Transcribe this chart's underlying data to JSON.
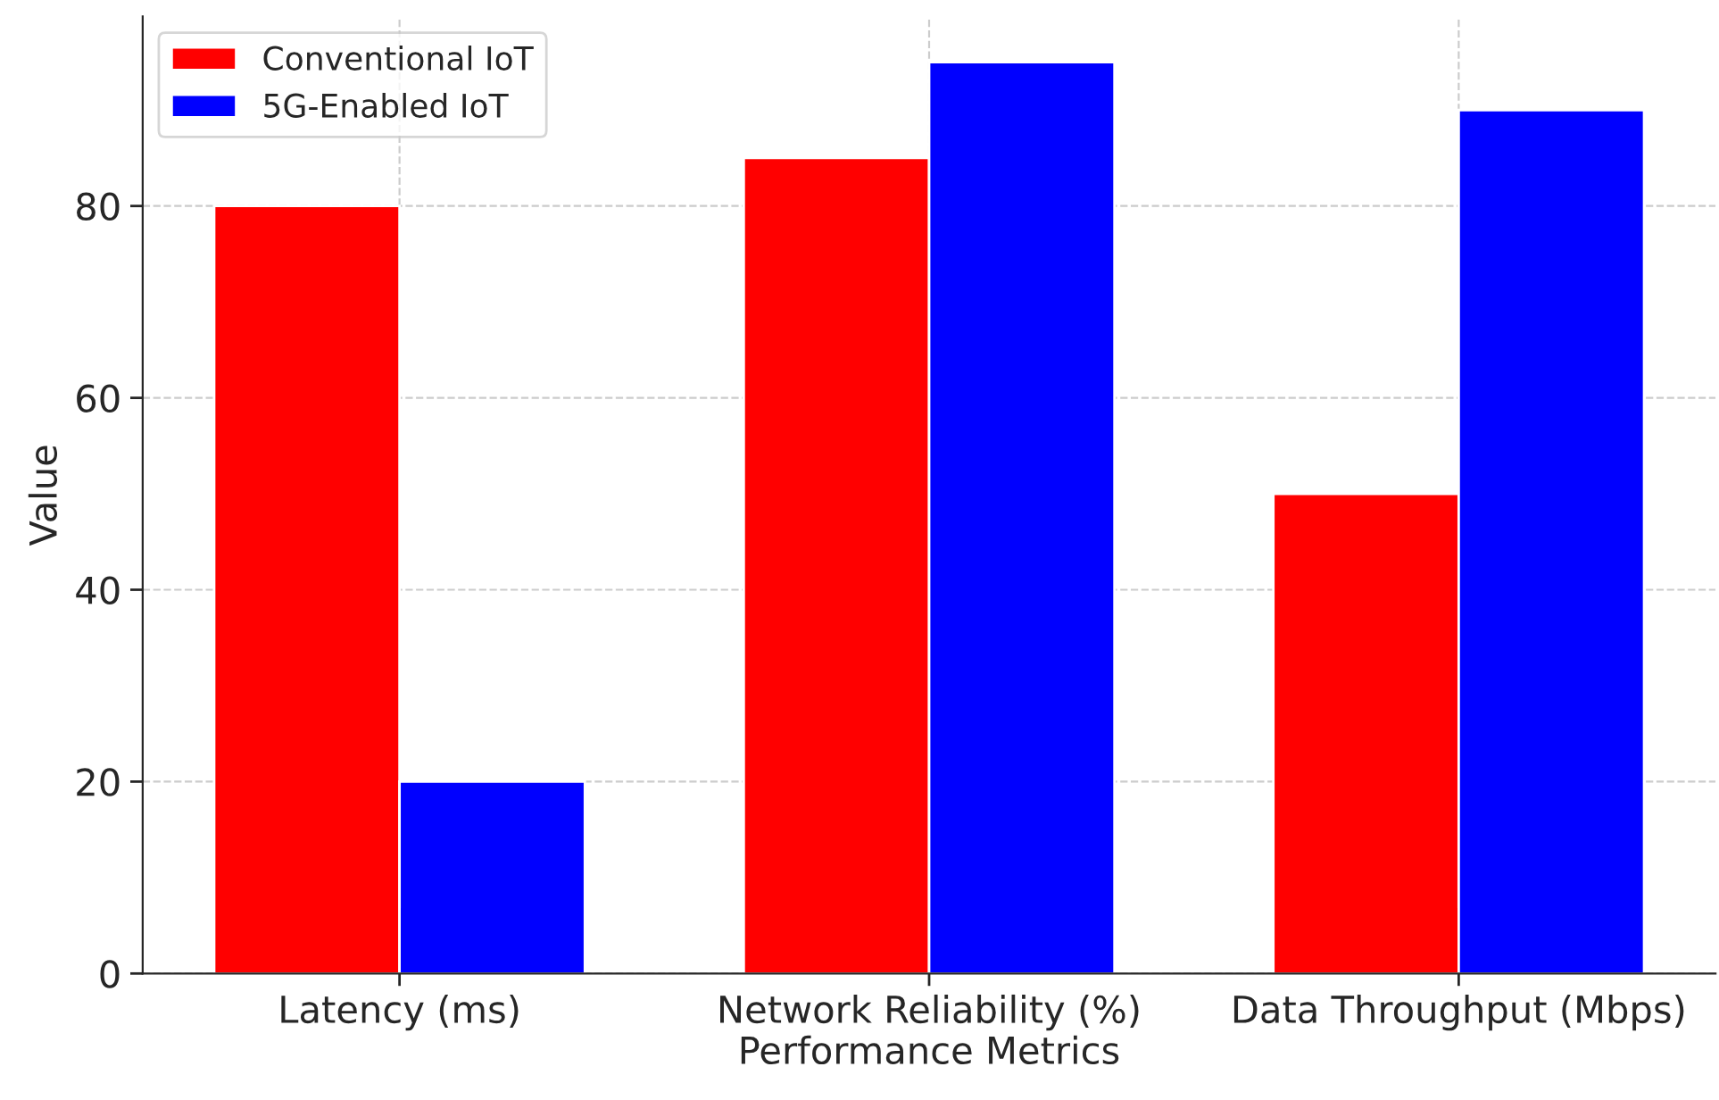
{
  "chart_data": {
    "type": "bar",
    "xlabel": "Performance Metrics",
    "ylabel": "Value",
    "categories": [
      "Latency (ms)",
      "Network Reliability (%)",
      "Data Throughput (Mbps)"
    ],
    "series": [
      {
        "name": "Conventional IoT",
        "color": "#ff0000",
        "values": [
          80,
          85,
          50
        ]
      },
      {
        "name": "5G-Enabled IoT",
        "color": "#0000ff",
        "values": [
          20,
          95,
          90
        ]
      }
    ],
    "ylim": [
      0,
      99.75
    ],
    "yticks": [
      0,
      20,
      40,
      60,
      80
    ],
    "grid": true,
    "legend": "top left"
  }
}
